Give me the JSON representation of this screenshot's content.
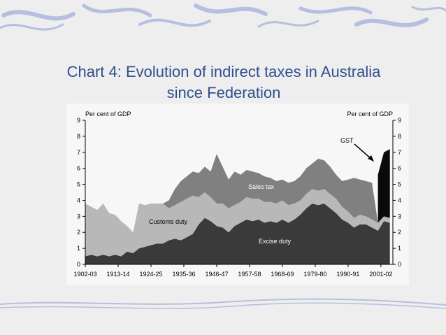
{
  "slide": {
    "title_line1": "Chart 4: Evolution of indirect taxes in Australia",
    "title_line2": "since Federation"
  },
  "colors": {
    "background": "#eeeeee",
    "panel": "#f7f7f7",
    "title": "#2f4f8f",
    "excise": "#3a3a3a",
    "customs": "#b8b8b8",
    "sales_tax": "#808080",
    "gst": "#0a0a0a",
    "decor": "#b6bfe0"
  },
  "chart_data": {
    "type": "area",
    "stacked": true,
    "title": "",
    "ylabel_left": "Per cent of GDP",
    "ylabel_right": "Per cent of GDP",
    "ylim": [
      0,
      9
    ],
    "yticks": [
      0,
      1,
      2,
      3,
      4,
      5,
      6,
      7,
      8,
      9
    ],
    "xlim": [
      1902,
      2005
    ],
    "xtick_labels": [
      "1902-03",
      "1913-14",
      "1924-25",
      "1935-36",
      "1946-47",
      "1957-58",
      "1968-69",
      "1979-80",
      "1990-91",
      "2001-02"
    ],
    "xtick_years": [
      1902,
      1913,
      1924,
      1935,
      1946,
      1957,
      1968,
      1979,
      1990,
      2001
    ],
    "x": [
      1902,
      1904,
      1906,
      1908,
      1910,
      1912,
      1914,
      1916,
      1918,
      1920,
      1922,
      1924,
      1926,
      1928,
      1930,
      1932,
      1934,
      1936,
      1938,
      1940,
      1942,
      1944,
      1946,
      1948,
      1950,
      1952,
      1954,
      1956,
      1958,
      1960,
      1962,
      1964,
      1966,
      1968,
      1970,
      1972,
      1974,
      1976,
      1978,
      1980,
      1982,
      1984,
      1986,
      1988,
      1990,
      1992,
      1994,
      1996,
      1998,
      2000,
      2002,
      2004
    ],
    "series": [
      {
        "name": "Excise duty",
        "values": [
          0.5,
          0.6,
          0.5,
          0.6,
          0.5,
          0.6,
          0.5,
          0.8,
          0.7,
          1.0,
          1.1,
          1.2,
          1.3,
          1.3,
          1.5,
          1.6,
          1.5,
          1.7,
          1.9,
          2.5,
          2.9,
          2.7,
          2.4,
          2.3,
          2.0,
          2.4,
          2.6,
          2.8,
          2.7,
          2.8,
          2.6,
          2.7,
          2.6,
          2.8,
          2.6,
          2.8,
          3.1,
          3.5,
          3.8,
          3.7,
          3.8,
          3.5,
          3.2,
          2.8,
          2.6,
          2.3,
          2.5,
          2.5,
          2.3,
          2.1,
          2.7,
          2.6
        ]
      },
      {
        "name": "Customs duty",
        "values": [
          3.3,
          3.0,
          2.9,
          3.2,
          2.7,
          2.5,
          2.2,
          1.6,
          1.3,
          2.8,
          2.6,
          2.6,
          2.5,
          2.5,
          2.0,
          2.1,
          2.4,
          2.4,
          2.4,
          1.7,
          1.6,
          1.5,
          1.4,
          1.5,
          1.5,
          1.3,
          1.3,
          1.4,
          1.4,
          1.3,
          1.3,
          1.2,
          1.2,
          1.2,
          1.1,
          1.0,
          0.9,
          0.9,
          0.9,
          0.9,
          0.9,
          0.9,
          0.9,
          0.8,
          0.7,
          0.6,
          0.6,
          0.5,
          0.5,
          0.5,
          0.3,
          0.3
        ]
      },
      {
        "name": "Sales tax",
        "values": [
          0.0,
          0.0,
          0.0,
          0.0,
          0.0,
          0.0,
          0.0,
          0.0,
          0.0,
          0.0,
          0.0,
          0.0,
          0.0,
          0.0,
          0.5,
          1.0,
          1.3,
          1.4,
          1.5,
          1.5,
          1.6,
          1.6,
          3.1,
          2.3,
          1.8,
          2.1,
          1.7,
          1.7,
          1.7,
          1.6,
          1.6,
          1.5,
          1.4,
          1.3,
          1.4,
          1.4,
          1.5,
          1.6,
          1.6,
          2.0,
          1.8,
          1.7,
          1.5,
          1.6,
          2.0,
          2.5,
          2.2,
          2.2,
          2.3,
          0.0,
          0.0,
          0.0
        ]
      },
      {
        "name": "GST",
        "values": [
          0.0,
          0.0,
          0.0,
          0.0,
          0.0,
          0.0,
          0.0,
          0.0,
          0.0,
          0.0,
          0.0,
          0.0,
          0.0,
          0.0,
          0.0,
          0.0,
          0.0,
          0.0,
          0.0,
          0.0,
          0.0,
          0.0,
          0.0,
          0.0,
          0.0,
          0.0,
          0.0,
          0.0,
          0.0,
          0.0,
          0.0,
          0.0,
          0.0,
          0.0,
          0.0,
          0.0,
          0.0,
          0.0,
          0.0,
          0.0,
          0.0,
          0.0,
          0.0,
          0.0,
          0.0,
          0.0,
          0.0,
          0.0,
          0.0,
          3.0,
          4.0,
          4.3
        ]
      }
    ],
    "annotations": [
      {
        "text": "Excise duty",
        "series": "Excise duty"
      },
      {
        "text": "Customs duty",
        "series": "Customs duty"
      },
      {
        "text": "Sales tax",
        "series": "Sales tax"
      },
      {
        "text": "GST",
        "series": "GST",
        "arrow": true
      }
    ],
    "legend": "none",
    "grid": false
  }
}
